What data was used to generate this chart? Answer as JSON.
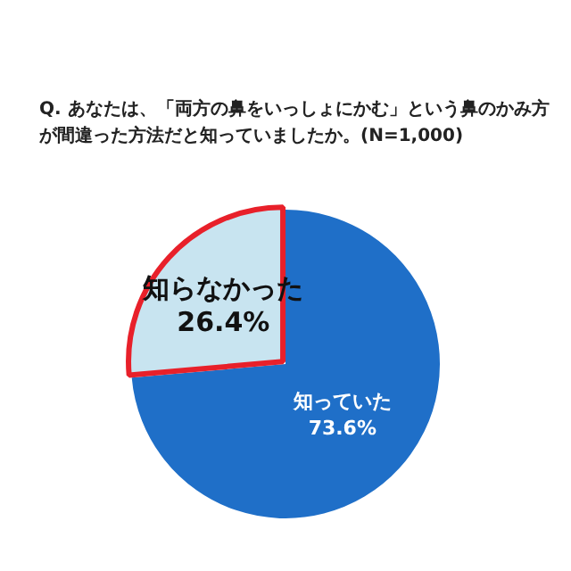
{
  "chart_data": {
    "type": "pie",
    "title": "Q. あなたは、「両方の鼻をいっしょにかむ」という鼻のかみ方が間違った方法だと知っていましたか。(N=1,000)",
    "categories": [
      "知っていた",
      "知らなかった"
    ],
    "values": [
      73.6,
      26.4
    ],
    "colors": [
      "#1f6fc8",
      "#c8e4f0"
    ],
    "value_labels": [
      "73.6%",
      "26.4%"
    ],
    "legend": false
  }
}
